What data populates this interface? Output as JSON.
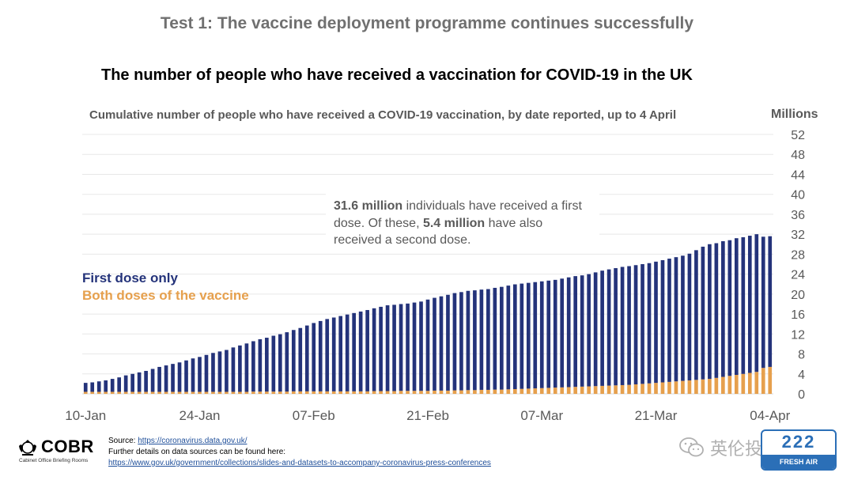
{
  "slide": {
    "test_title": "Test 1: The vaccine deployment programme continues successfully"
  },
  "chart_data": {
    "type": "bar",
    "stacked": true,
    "title": "The number of people who have received a vaccination for COVID-19 in the UK",
    "subtitle": "Cumulative number of people who have received a COVID-19 vaccination, by date reported, up to 4 April",
    "ylabel": "Millions",
    "ylim": [
      0,
      52
    ],
    "yticks": [
      0,
      4,
      8,
      12,
      16,
      20,
      24,
      28,
      32,
      36,
      40,
      44,
      48,
      52
    ],
    "y_axis_side": "right",
    "grid": true,
    "x_tick_labels": [
      "10-Jan",
      "24-Jan",
      "07-Feb",
      "21-Feb",
      "07-Mar",
      "21-Mar",
      "04-Apr"
    ],
    "x_start": "10-Jan",
    "x_end": "04-Apr",
    "legend_position": "left-middle",
    "series": [
      {
        "name": "First dose only",
        "color": "#24337a",
        "values": [
          1.8,
          1.9,
          2.1,
          2.3,
          2.6,
          2.9,
          3.3,
          3.6,
          3.9,
          4.2,
          4.6,
          5.0,
          5.3,
          5.6,
          5.9,
          6.3,
          6.7,
          7.0,
          7.4,
          7.8,
          8.1,
          8.4,
          8.9,
          9.3,
          9.7,
          10.1,
          10.5,
          10.8,
          11.2,
          11.5,
          11.9,
          12.3,
          12.7,
          13.2,
          13.7,
          14.1,
          14.5,
          14.8,
          15.1,
          15.4,
          15.7,
          16.0,
          16.3,
          16.6,
          16.9,
          17.2,
          17.3,
          17.4,
          17.5,
          17.7,
          17.9,
          18.3,
          18.6,
          18.9,
          19.2,
          19.5,
          19.7,
          19.9,
          20.0,
          20.1,
          20.2,
          20.4,
          20.6,
          20.8,
          21.0,
          21.1,
          21.2,
          21.3,
          21.4,
          21.5,
          21.6,
          21.8,
          22.0,
          22.2,
          22.3,
          22.5,
          22.8,
          23.1,
          23.3,
          23.5,
          23.7,
          23.8,
          23.9,
          24.0,
          24.1,
          24.3,
          24.5,
          24.7,
          24.9,
          25.1,
          25.4,
          26.0,
          26.6,
          27.0,
          27.0,
          27.2,
          27.2,
          27.4,
          27.4,
          27.5,
          27.6,
          26.3,
          26.2
        ]
      },
      {
        "name": "Both doses of the vaccine",
        "color": "#e6a04d",
        "values": [
          0.4,
          0.4,
          0.4,
          0.4,
          0.4,
          0.4,
          0.4,
          0.4,
          0.4,
          0.4,
          0.4,
          0.4,
          0.4,
          0.4,
          0.4,
          0.4,
          0.4,
          0.4,
          0.4,
          0.4,
          0.4,
          0.4,
          0.4,
          0.4,
          0.4,
          0.45,
          0.45,
          0.45,
          0.45,
          0.45,
          0.45,
          0.5,
          0.5,
          0.5,
          0.5,
          0.5,
          0.5,
          0.5,
          0.5,
          0.5,
          0.5,
          0.5,
          0.5,
          0.55,
          0.55,
          0.55,
          0.55,
          0.6,
          0.6,
          0.6,
          0.6,
          0.6,
          0.65,
          0.65,
          0.65,
          0.7,
          0.7,
          0.75,
          0.75,
          0.8,
          0.8,
          0.85,
          0.85,
          0.9,
          0.95,
          1.0,
          1.05,
          1.1,
          1.15,
          1.2,
          1.25,
          1.3,
          1.35,
          1.4,
          1.45,
          1.5,
          1.55,
          1.6,
          1.65,
          1.7,
          1.75,
          1.8,
          1.9,
          2.0,
          2.1,
          2.2,
          2.3,
          2.4,
          2.5,
          2.6,
          2.7,
          2.8,
          2.9,
          3.0,
          3.2,
          3.4,
          3.6,
          3.8,
          4.0,
          4.2,
          4.4,
          5.2,
          5.4
        ]
      }
    ],
    "annotations": [
      {
        "bold1": "31.6 million",
        "text1": " individuals have received a first dose. Of these, ",
        "bold2": "5.4 million",
        "text2": " have also received a second dose."
      }
    ]
  },
  "footer": {
    "logo_text": "COBR",
    "logo_subtext": "Cabinet Office Briefing Rooms",
    "source_label": "Source: ",
    "source_url": "https://coronavirus.data.gov.uk/",
    "details_text": "Further details on data sources can be found here:",
    "details_url": "https://www.gov.uk/government/collections/slides-and-datasets-to-accompany-coronavirus-press-conferences"
  },
  "watermark": {
    "text": "英伦投资客",
    "badge_top": "222",
    "badge_bottom": "FRESH AIR"
  }
}
